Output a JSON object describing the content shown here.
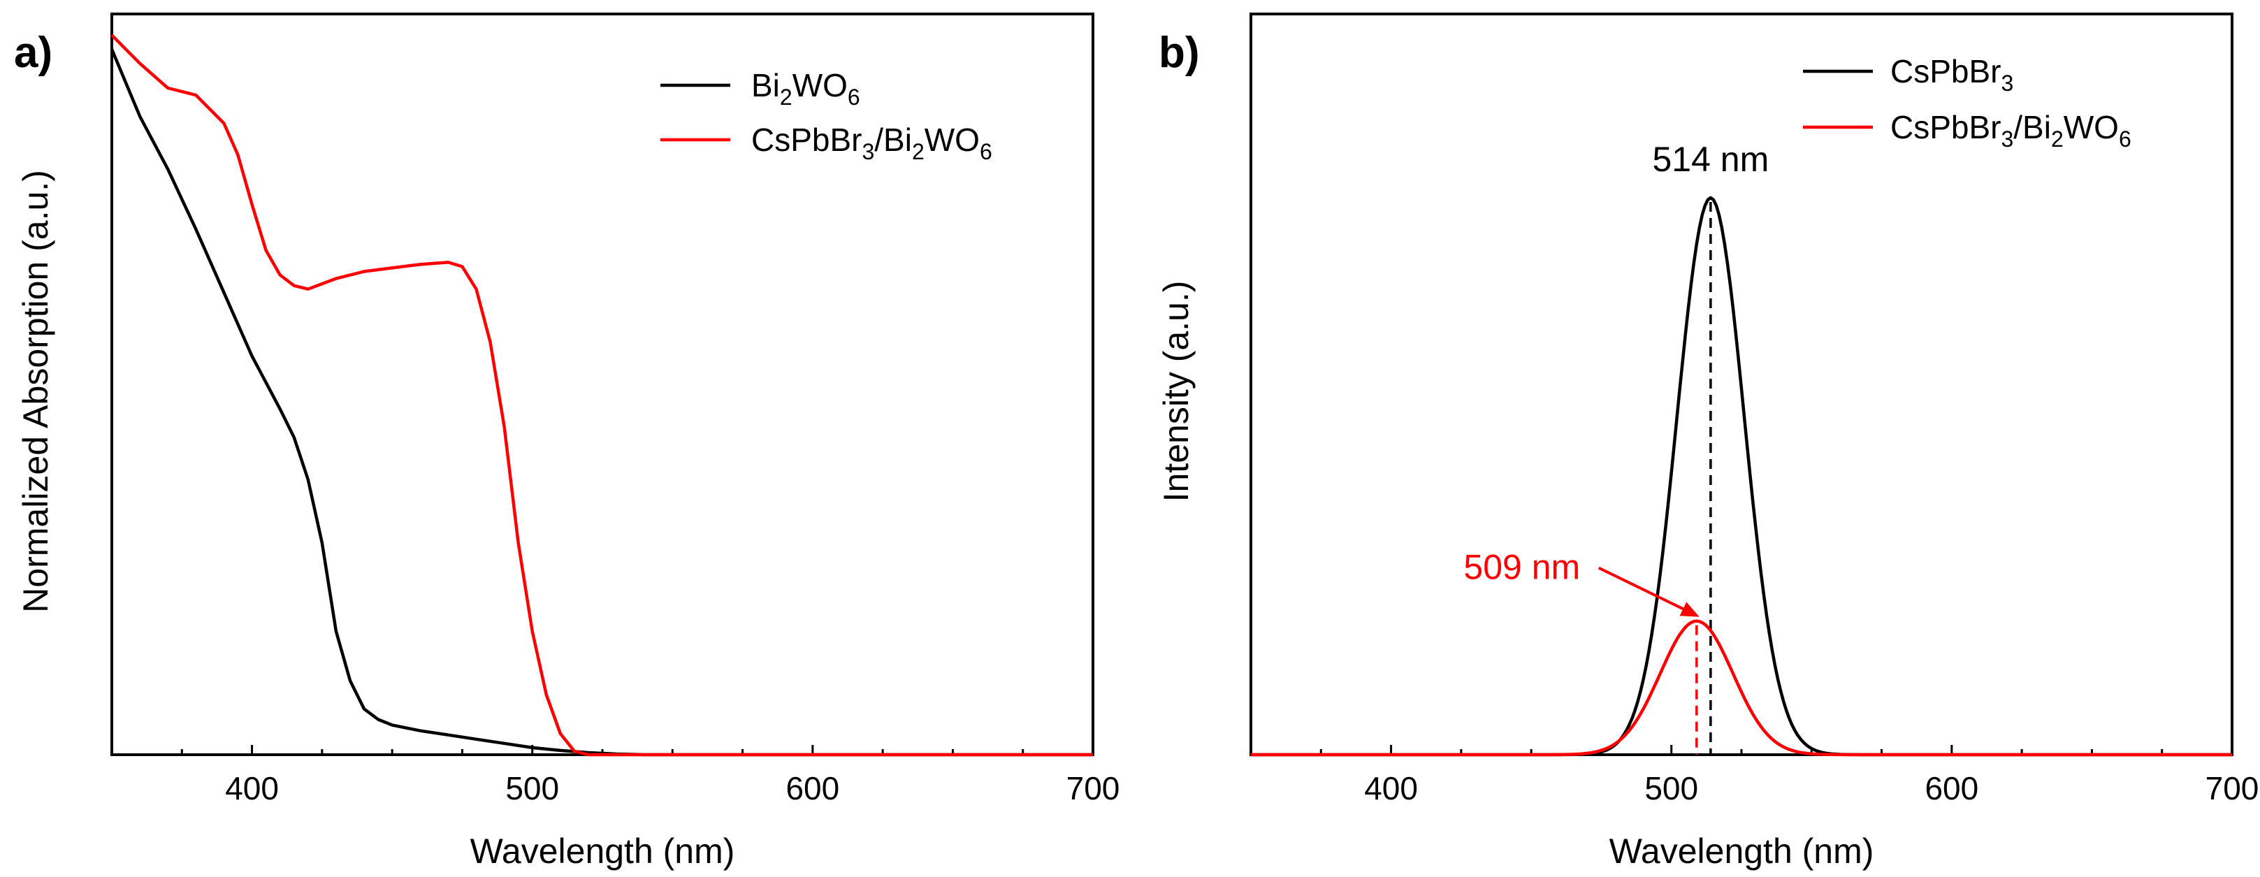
{
  "chart_data": [
    {
      "panel": "a)",
      "type": "line",
      "xlabel": "Wavelength (nm)",
      "ylabel": "Normalized Absorption (a.u.)",
      "xlim": [
        350,
        700
      ],
      "ylim": [
        0,
        1.05
      ],
      "xticks": [
        400,
        500,
        600,
        700
      ],
      "legend_position": "top-right",
      "series": [
        {
          "name": "Bi2WO6",
          "legend": {
            "main": "Bi",
            "sub1": "2",
            "mid": "WO",
            "sub2": "6"
          },
          "color": "#000000",
          "x": [
            350,
            360,
            370,
            380,
            390,
            400,
            410,
            415,
            420,
            425,
            430,
            435,
            440,
            445,
            450,
            460,
            470,
            480,
            490,
            500,
            510,
            520,
            530,
            540,
            600,
            700
          ],
          "y": [
            1.0,
            0.905,
            0.83,
            0.745,
            0.655,
            0.565,
            0.49,
            0.45,
            0.39,
            0.3,
            0.175,
            0.105,
            0.065,
            0.05,
            0.042,
            0.034,
            0.028,
            0.022,
            0.016,
            0.01,
            0.006,
            0.003,
            0.001,
            0.0,
            0.0,
            0.0
          ]
        },
        {
          "name": "CsPbBr3/Bi2WO6",
          "legend": {
            "main": "CsPbBr",
            "sub1": "3",
            "mid": "/Bi",
            "sub2": "2",
            "tail": "WO",
            "sub3": "6"
          },
          "color": "#ff0000",
          "x": [
            350,
            360,
            370,
            380,
            390,
            395,
            400,
            405,
            410,
            415,
            420,
            430,
            440,
            450,
            460,
            470,
            475,
            480,
            485,
            490,
            495,
            500,
            505,
            510,
            515,
            520,
            600,
            700
          ],
          "y": [
            1.02,
            0.98,
            0.945,
            0.935,
            0.895,
            0.85,
            0.78,
            0.715,
            0.68,
            0.665,
            0.66,
            0.675,
            0.685,
            0.69,
            0.695,
            0.698,
            0.692,
            0.66,
            0.585,
            0.465,
            0.3,
            0.175,
            0.085,
            0.03,
            0.005,
            0.0,
            0.0,
            0.0
          ]
        }
      ]
    },
    {
      "panel": "b)",
      "type": "line",
      "xlabel": "Wavelength (nm)",
      "ylabel": "Intensity (a.u.)",
      "xlim": [
        350,
        700
      ],
      "ylim": [
        0,
        1.33
      ],
      "xticks": [
        400,
        500,
        600,
        700
      ],
      "legend_position": "top-right",
      "series": [
        {
          "name": "CsPbBr3",
          "legend": {
            "main": "CsPbBr",
            "sub1": "3"
          },
          "color": "#000000",
          "model": {
            "shape": "gaussian",
            "peak_nm": 514,
            "peak_height": 1.0,
            "sigma_nm": 12
          }
        },
        {
          "name": "CsPbBr3/Bi2WO6",
          "legend": {
            "main": "CsPbBr",
            "sub1": "3",
            "mid": "/Bi",
            "sub2": "2",
            "tail": "WO",
            "sub3": "6"
          },
          "color": "#ff0000",
          "model": {
            "shape": "gaussian",
            "peak_nm": 509,
            "peak_height": 0.24,
            "sigma_nm": 13
          }
        }
      ],
      "annotations": [
        {
          "text": "514 nm",
          "x": 514,
          "color": "#000000",
          "style": "dashed vertical line at peak"
        },
        {
          "text": "509 nm",
          "x": 509,
          "color": "#ff0000",
          "style": "dashed vertical line at peak with arrow"
        }
      ]
    }
  ]
}
